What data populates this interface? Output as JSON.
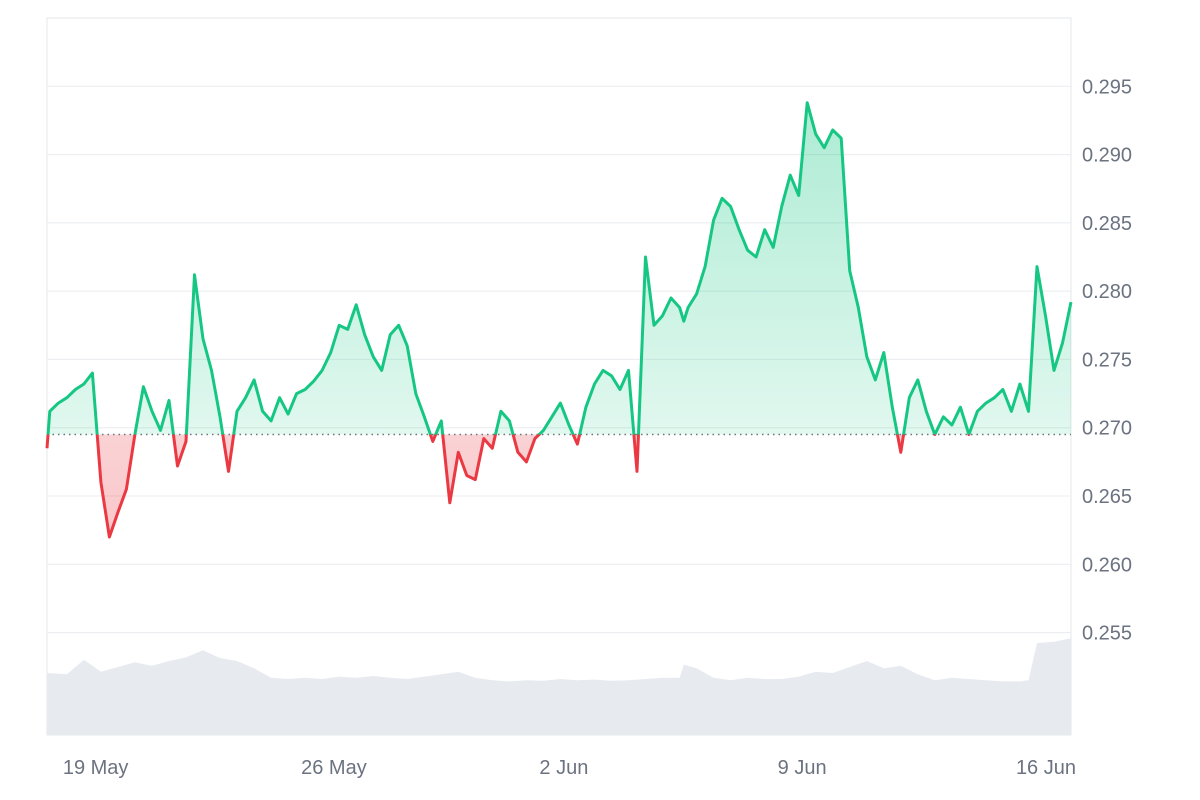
{
  "chart_data": {
    "type": "area",
    "x_type": "date",
    "baseline": 0.2695,
    "colors": {
      "up": "#16c784",
      "down": "#ea3943",
      "grid": "#e9ecef",
      "baseline": "#6b7280",
      "volume": "#e7ebf0",
      "tick_text": "#6b7280"
    },
    "ylim": [
      0.2475,
      0.3
    ],
    "ytick_values": [
      0.255,
      0.26,
      0.265,
      0.27,
      0.275,
      0.28,
      0.285,
      0.29,
      0.295
    ],
    "ytick_labels": [
      "0.255",
      "0.260",
      "0.265",
      "0.270",
      "0.275",
      "0.280",
      "0.285",
      "0.290",
      "0.295"
    ],
    "xlim": [
      "2025-05-18T10:00",
      "2025-06-17T12:00"
    ],
    "xtick_values": [
      "2025-05-19",
      "2025-05-26",
      "2025-06-02",
      "2025-06-09",
      "2025-06-16"
    ],
    "xtick_labels": [
      "19 May",
      "26 May",
      "2 Jun",
      "9 Jun",
      "16 Jun"
    ],
    "grid": true,
    "price": {
      "x": [
        "2025-05-18T10:00",
        "2025-05-18T12:00",
        "2025-05-18T18:00",
        "2025-05-19T00:00",
        "2025-05-19T06:00",
        "2025-05-19T12:00",
        "2025-05-19T18:00",
        "2025-05-20T00:00",
        "2025-05-20T06:00",
        "2025-05-20T12:00",
        "2025-05-20T18:00",
        "2025-05-21T00:00",
        "2025-05-21T06:00",
        "2025-05-21T12:00",
        "2025-05-21T18:00",
        "2025-05-22T00:00",
        "2025-05-22T06:00",
        "2025-05-22T12:00",
        "2025-05-22T18:00",
        "2025-05-23T00:00",
        "2025-05-23T06:00",
        "2025-05-23T12:00",
        "2025-05-23T18:00",
        "2025-05-24T00:00",
        "2025-05-24T06:00",
        "2025-05-24T12:00",
        "2025-05-24T18:00",
        "2025-05-25T00:00",
        "2025-05-25T06:00",
        "2025-05-25T12:00",
        "2025-05-25T18:00",
        "2025-05-26T00:00",
        "2025-05-26T06:00",
        "2025-05-26T12:00",
        "2025-05-26T18:00",
        "2025-05-27T00:00",
        "2025-05-27T06:00",
        "2025-05-27T12:00",
        "2025-05-27T18:00",
        "2025-05-28T00:00",
        "2025-05-28T06:00",
        "2025-05-28T12:00",
        "2025-05-28T18:00",
        "2025-05-29T00:00",
        "2025-05-29T06:00",
        "2025-05-29T12:00",
        "2025-05-29T18:00",
        "2025-05-30T00:00",
        "2025-05-30T06:00",
        "2025-05-30T12:00",
        "2025-05-30T18:00",
        "2025-05-31T00:00",
        "2025-05-31T06:00",
        "2025-05-31T12:00",
        "2025-05-31T18:00",
        "2025-06-01T00:00",
        "2025-06-01T06:00",
        "2025-06-01T12:00",
        "2025-06-01T18:00",
        "2025-06-02T00:00",
        "2025-06-02T06:00",
        "2025-06-02T12:00",
        "2025-06-02T18:00",
        "2025-06-03T00:00",
        "2025-06-03T06:00",
        "2025-06-03T12:00",
        "2025-06-03T18:00",
        "2025-06-04T00:00",
        "2025-06-04T06:00",
        "2025-06-04T12:00",
        "2025-06-04T18:00",
        "2025-06-05T00:00",
        "2025-06-05T06:00",
        "2025-06-05T12:00",
        "2025-06-05T18:00",
        "2025-06-06T00:00",
        "2025-06-06T03:00",
        "2025-06-06T06:00",
        "2025-06-06T12:00",
        "2025-06-06T18:00",
        "2025-06-07T00:00",
        "2025-06-07T06:00",
        "2025-06-07T12:00",
        "2025-06-07T18:00",
        "2025-06-08T00:00",
        "2025-06-08T06:00",
        "2025-06-08T12:00",
        "2025-06-08T18:00",
        "2025-06-09T00:00",
        "2025-06-09T06:00",
        "2025-06-09T12:00",
        "2025-06-09T18:00",
        "2025-06-10T00:00",
        "2025-06-10T06:00",
        "2025-06-10T12:00",
        "2025-06-10T18:00",
        "2025-06-11T00:00",
        "2025-06-11T06:00",
        "2025-06-11T12:00",
        "2025-06-11T18:00",
        "2025-06-12T00:00",
        "2025-06-12T06:00",
        "2025-06-12T12:00",
        "2025-06-12T18:00",
        "2025-06-13T00:00",
        "2025-06-13T06:00",
        "2025-06-13T12:00",
        "2025-06-13T18:00",
        "2025-06-14T00:00",
        "2025-06-14T06:00",
        "2025-06-14T12:00",
        "2025-06-14T18:00",
        "2025-06-15T00:00",
        "2025-06-15T06:00",
        "2025-06-15T12:00",
        "2025-06-15T18:00",
        "2025-06-16T00:00",
        "2025-06-16T06:00",
        "2025-06-16T12:00",
        "2025-06-16T18:00",
        "2025-06-17T00:00",
        "2025-06-17T06:00",
        "2025-06-17T12:00"
      ],
      "y": [
        0.2685,
        0.2712,
        0.2718,
        0.2722,
        0.2728,
        0.2732,
        0.274,
        0.266,
        0.262,
        0.2638,
        0.2655,
        0.2695,
        0.273,
        0.2712,
        0.2698,
        0.272,
        0.2672,
        0.269,
        0.2812,
        0.2765,
        0.2742,
        0.2708,
        0.2668,
        0.2712,
        0.2722,
        0.2735,
        0.2712,
        0.2705,
        0.2722,
        0.271,
        0.2725,
        0.2728,
        0.2734,
        0.2742,
        0.2755,
        0.2775,
        0.2772,
        0.279,
        0.2768,
        0.2752,
        0.2742,
        0.2768,
        0.2775,
        0.276,
        0.2725,
        0.2708,
        0.269,
        0.2705,
        0.2645,
        0.2682,
        0.2665,
        0.2662,
        0.2692,
        0.2685,
        0.2712,
        0.2705,
        0.2682,
        0.2675,
        0.2692,
        0.2698,
        0.2708,
        0.2718,
        0.2702,
        0.2688,
        0.2715,
        0.2732,
        0.2742,
        0.2738,
        0.2728,
        0.2742,
        0.2668,
        0.2825,
        0.2775,
        0.2782,
        0.2795,
        0.2788,
        0.2778,
        0.2788,
        0.2798,
        0.2818,
        0.2852,
        0.2868,
        0.2862,
        0.2845,
        0.283,
        0.2825,
        0.2845,
        0.2832,
        0.2862,
        0.2885,
        0.287,
        0.2938,
        0.2915,
        0.2905,
        0.2918,
        0.2912,
        0.2815,
        0.2788,
        0.2752,
        0.2735,
        0.2755,
        0.2715,
        0.2682,
        0.2722,
        0.2735,
        0.2712,
        0.2695,
        0.2708,
        0.2702,
        0.2715,
        0.2695,
        0.2712,
        0.2718,
        0.2722,
        0.2728,
        0.2712,
        0.2732,
        0.2712,
        0.2818,
        0.2782,
        0.2742,
        0.2762,
        0.2792
      ]
    },
    "volume": {
      "x": [
        "2025-05-18T10:00",
        "2025-05-19T00:00",
        "2025-05-19T12:00",
        "2025-05-20T00:00",
        "2025-05-20T12:00",
        "2025-05-21T00:00",
        "2025-05-21T12:00",
        "2025-05-22T00:00",
        "2025-05-22T12:00",
        "2025-05-23T00:00",
        "2025-05-23T12:00",
        "2025-05-24T00:00",
        "2025-05-24T12:00",
        "2025-05-25T00:00",
        "2025-05-25T12:00",
        "2025-05-26T00:00",
        "2025-05-26T12:00",
        "2025-05-27T00:00",
        "2025-05-27T12:00",
        "2025-05-28T00:00",
        "2025-05-28T12:00",
        "2025-05-29T00:00",
        "2025-05-29T12:00",
        "2025-05-30T00:00",
        "2025-05-30T12:00",
        "2025-05-31T00:00",
        "2025-05-31T12:00",
        "2025-06-01T00:00",
        "2025-06-01T12:00",
        "2025-06-02T00:00",
        "2025-06-02T12:00",
        "2025-06-03T00:00",
        "2025-06-03T12:00",
        "2025-06-04T00:00",
        "2025-06-04T12:00",
        "2025-06-05T00:00",
        "2025-06-05T12:00",
        "2025-06-06T00:00",
        "2025-06-06T03:00",
        "2025-06-06T12:00",
        "2025-06-07T00:00",
        "2025-06-07T12:00",
        "2025-06-08T00:00",
        "2025-06-08T12:00",
        "2025-06-09T00:00",
        "2025-06-09T12:00",
        "2025-06-10T00:00",
        "2025-06-10T12:00",
        "2025-06-11T00:00",
        "2025-06-11T12:00",
        "2025-06-12T00:00",
        "2025-06-12T12:00",
        "2025-06-13T00:00",
        "2025-06-13T12:00",
        "2025-06-14T00:00",
        "2025-06-14T12:00",
        "2025-06-15T00:00",
        "2025-06-15T12:00",
        "2025-06-16T00:00",
        "2025-06-16T06:00",
        "2025-06-16T12:00",
        "2025-06-17T00:00",
        "2025-06-17T12:00"
      ],
      "v": [
        0.2,
        0.18,
        0.42,
        0.22,
        0.3,
        0.38,
        0.32,
        0.4,
        0.46,
        0.58,
        0.45,
        0.4,
        0.28,
        0.12,
        0.1,
        0.12,
        0.1,
        0.14,
        0.12,
        0.15,
        0.12,
        0.1,
        0.14,
        0.18,
        0.22,
        0.12,
        0.08,
        0.06,
        0.08,
        0.07,
        0.1,
        0.08,
        0.09,
        0.07,
        0.08,
        0.1,
        0.12,
        0.12,
        0.34,
        0.28,
        0.12,
        0.08,
        0.12,
        0.1,
        0.1,
        0.14,
        0.22,
        0.2,
        0.3,
        0.4,
        0.28,
        0.32,
        0.18,
        0.08,
        0.12,
        0.1,
        0.08,
        0.06,
        0.06,
        0.08,
        0.7,
        0.72,
        0.78
      ]
    }
  }
}
